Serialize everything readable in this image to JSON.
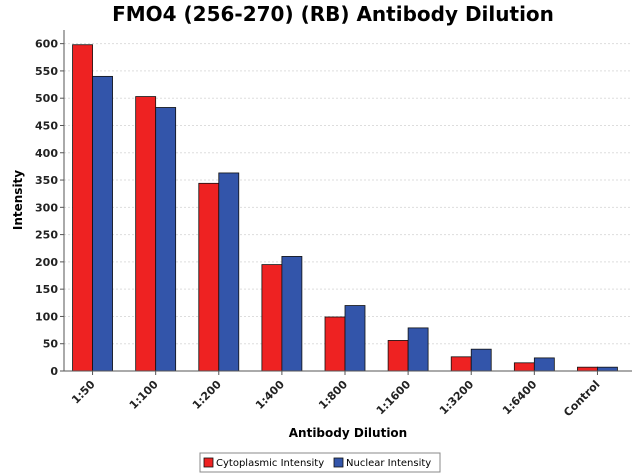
{
  "chart_data": {
    "type": "bar",
    "title": "FMO4 (256-270) (RB) Antibody Dilution",
    "xlabel": "Antibody Dilution",
    "ylabel": "Intensity",
    "ylim": [
      0,
      625
    ],
    "yticks": [
      0,
      50,
      100,
      150,
      200,
      250,
      300,
      350,
      400,
      450,
      500,
      550,
      600
    ],
    "grid": true,
    "legend_position": "bottom",
    "categories": [
      "1:50",
      "1:100",
      "1:200",
      "1:400",
      "1:800",
      "1:1600",
      "1:3200",
      "1:6400",
      "Control"
    ],
    "series": [
      {
        "name": "Cytoplasmic Intensity",
        "color": "#ee2222",
        "values": [
          598,
          503,
          344,
          195,
          99,
          56,
          26,
          15,
          7
        ]
      },
      {
        "name": "Nuclear Intensity",
        "color": "#3355aa",
        "values": [
          540,
          483,
          363,
          210,
          120,
          79,
          40,
          24,
          7
        ]
      }
    ]
  }
}
